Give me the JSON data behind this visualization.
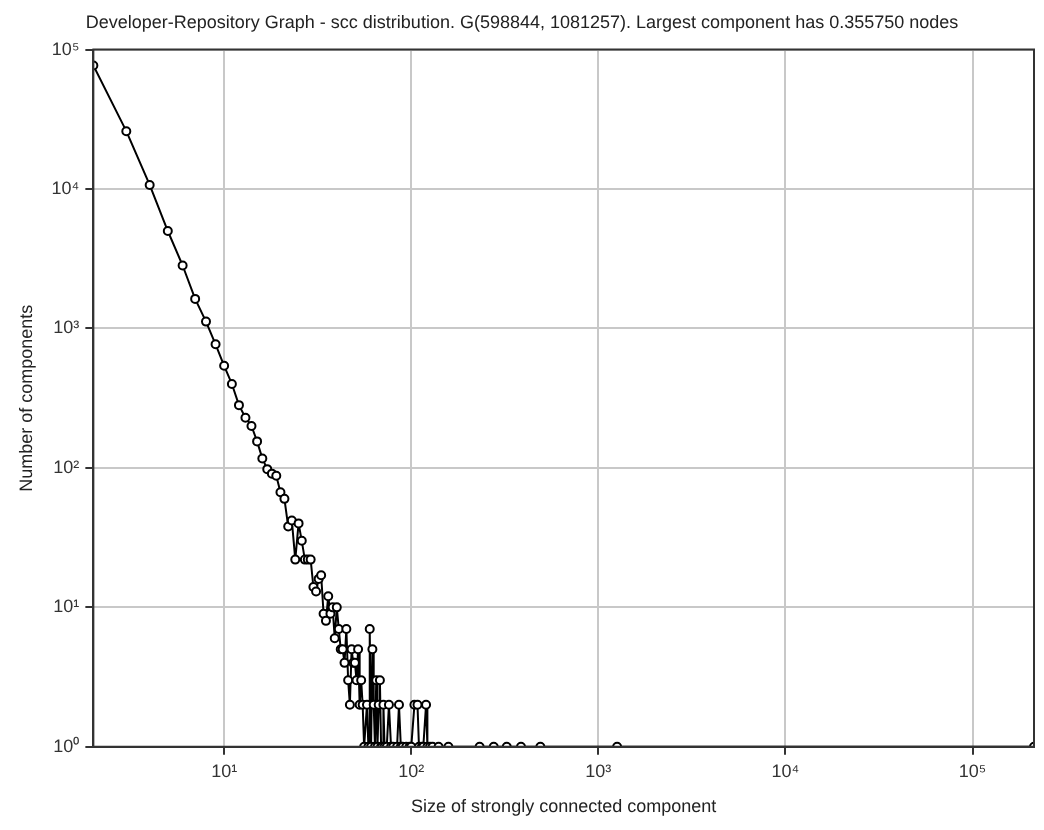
{
  "chart_data": {
    "type": "line",
    "title": "Developer-Repository Graph - scc distribution. G(598844, 1081257). Largest component has 0.355750 nodes",
    "xlabel": "Size of strongly connected component",
    "ylabel": "Number of components",
    "log": "xy",
    "grid": true,
    "marker": "circle",
    "line_style": "solid",
    "xlim": [
      2,
      213038
    ],
    "ylim": [
      1,
      100000
    ],
    "xticks": [
      {
        "value": 10,
        "label": "10¹"
      },
      {
        "value": 100,
        "label": "10²"
      },
      {
        "value": 1000,
        "label": "10³"
      },
      {
        "value": 10000,
        "label": "10⁴"
      },
      {
        "value": 100000,
        "label": "10⁵"
      }
    ],
    "yticks": [
      {
        "value": 1,
        "label": "10⁰"
      },
      {
        "value": 10,
        "label": "10¹"
      },
      {
        "value": 100,
        "label": "10²"
      },
      {
        "value": 1000,
        "label": "10³"
      },
      {
        "value": 10000,
        "label": "10⁴"
      },
      {
        "value": 100000,
        "label": "10⁵"
      }
    ],
    "series": [
      {
        "color": "#000000",
        "x": [
          2,
          3,
          4,
          5,
          6,
          7,
          8,
          9,
          10,
          11,
          12,
          13,
          14,
          15,
          16,
          17,
          18,
          19,
          20,
          21,
          22,
          23,
          24,
          25,
          26,
          27,
          28,
          29,
          30,
          31,
          32,
          33,
          34,
          35,
          36,
          37,
          38,
          39,
          40,
          41,
          42,
          43,
          44,
          45,
          46,
          47,
          48,
          49,
          50,
          51,
          52,
          53,
          54,
          55,
          56,
          58,
          59,
          60,
          61,
          62,
          63,
          64,
          65,
          66,
          67,
          68,
          69,
          70,
          71,
          72,
          74,
          76,
          78,
          80,
          84,
          86,
          88,
          90,
          94,
          98,
          100,
          104,
          108,
          110,
          114,
          116,
          120,
          122,
          126,
          130,
          140,
          158,
          232,
          276,
          324,
          386,
          490,
          1260,
          213038
        ],
        "values": [
          77000,
          26000,
          10700,
          5000,
          2830,
          1630,
          1120,
          770,
          540,
          400,
          282,
          229,
          200,
          155,
          117,
          98,
          91,
          88,
          67,
          60,
          38,
          42,
          22,
          40,
          30,
          22,
          22,
          22,
          14,
          13,
          16,
          17,
          9,
          8,
          12,
          9,
          10,
          6,
          10,
          7,
          5,
          5,
          4,
          7,
          3,
          2,
          5,
          4,
          4,
          3,
          5,
          2,
          3,
          2,
          1,
          2,
          1,
          7,
          1,
          5,
          2,
          1,
          3,
          1,
          2,
          3,
          1,
          1,
          2,
          1,
          1,
          2,
          1,
          1,
          1,
          2,
          1,
          1,
          1,
          1,
          1,
          2,
          2,
          1,
          1,
          1,
          2,
          1,
          1,
          1,
          1,
          1,
          1,
          1,
          1,
          1,
          1,
          1,
          1
        ]
      }
    ]
  }
}
